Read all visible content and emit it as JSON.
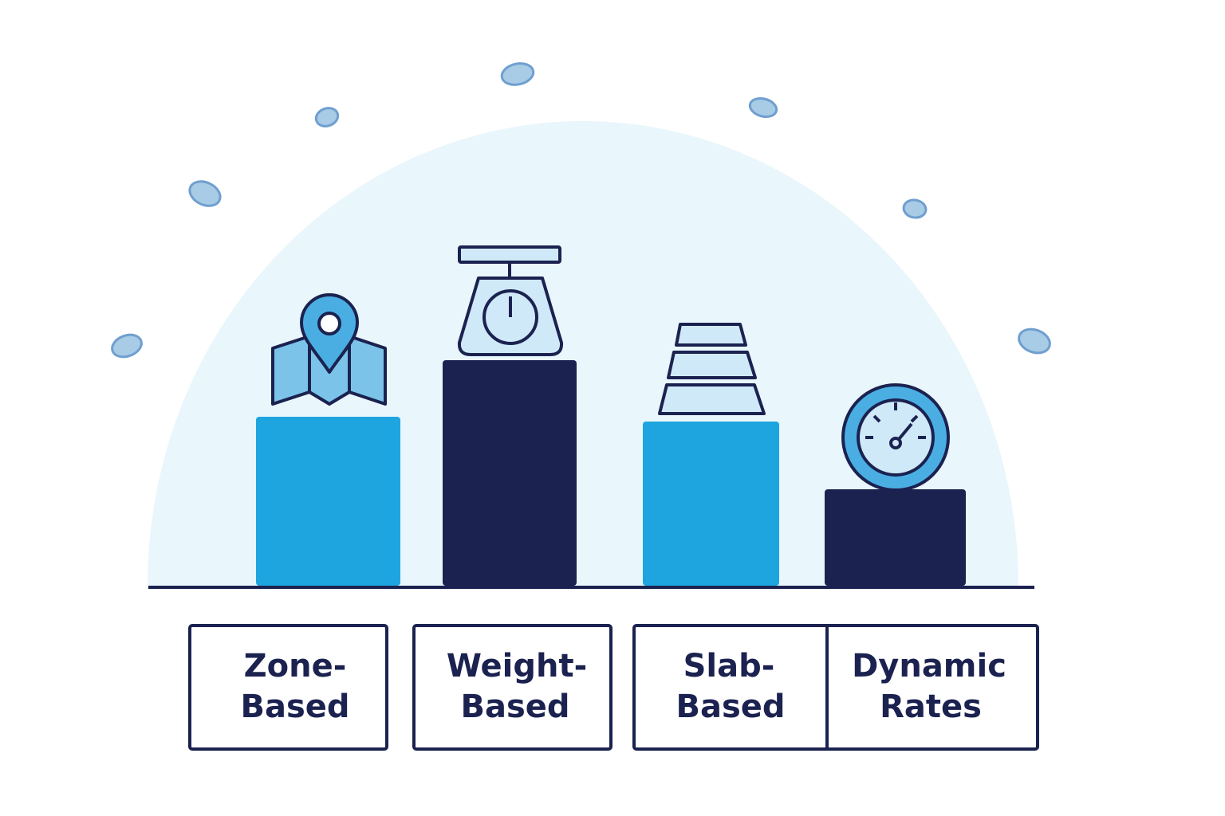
{
  "labels": [
    {
      "lines": [
        "Zone-",
        "Based"
      ]
    },
    {
      "lines": [
        "Weight-",
        "Based"
      ]
    },
    {
      "lines": [
        "Slab-",
        "Based"
      ]
    },
    {
      "lines": [
        "Dynamic",
        "Rates"
      ]
    }
  ]
}
